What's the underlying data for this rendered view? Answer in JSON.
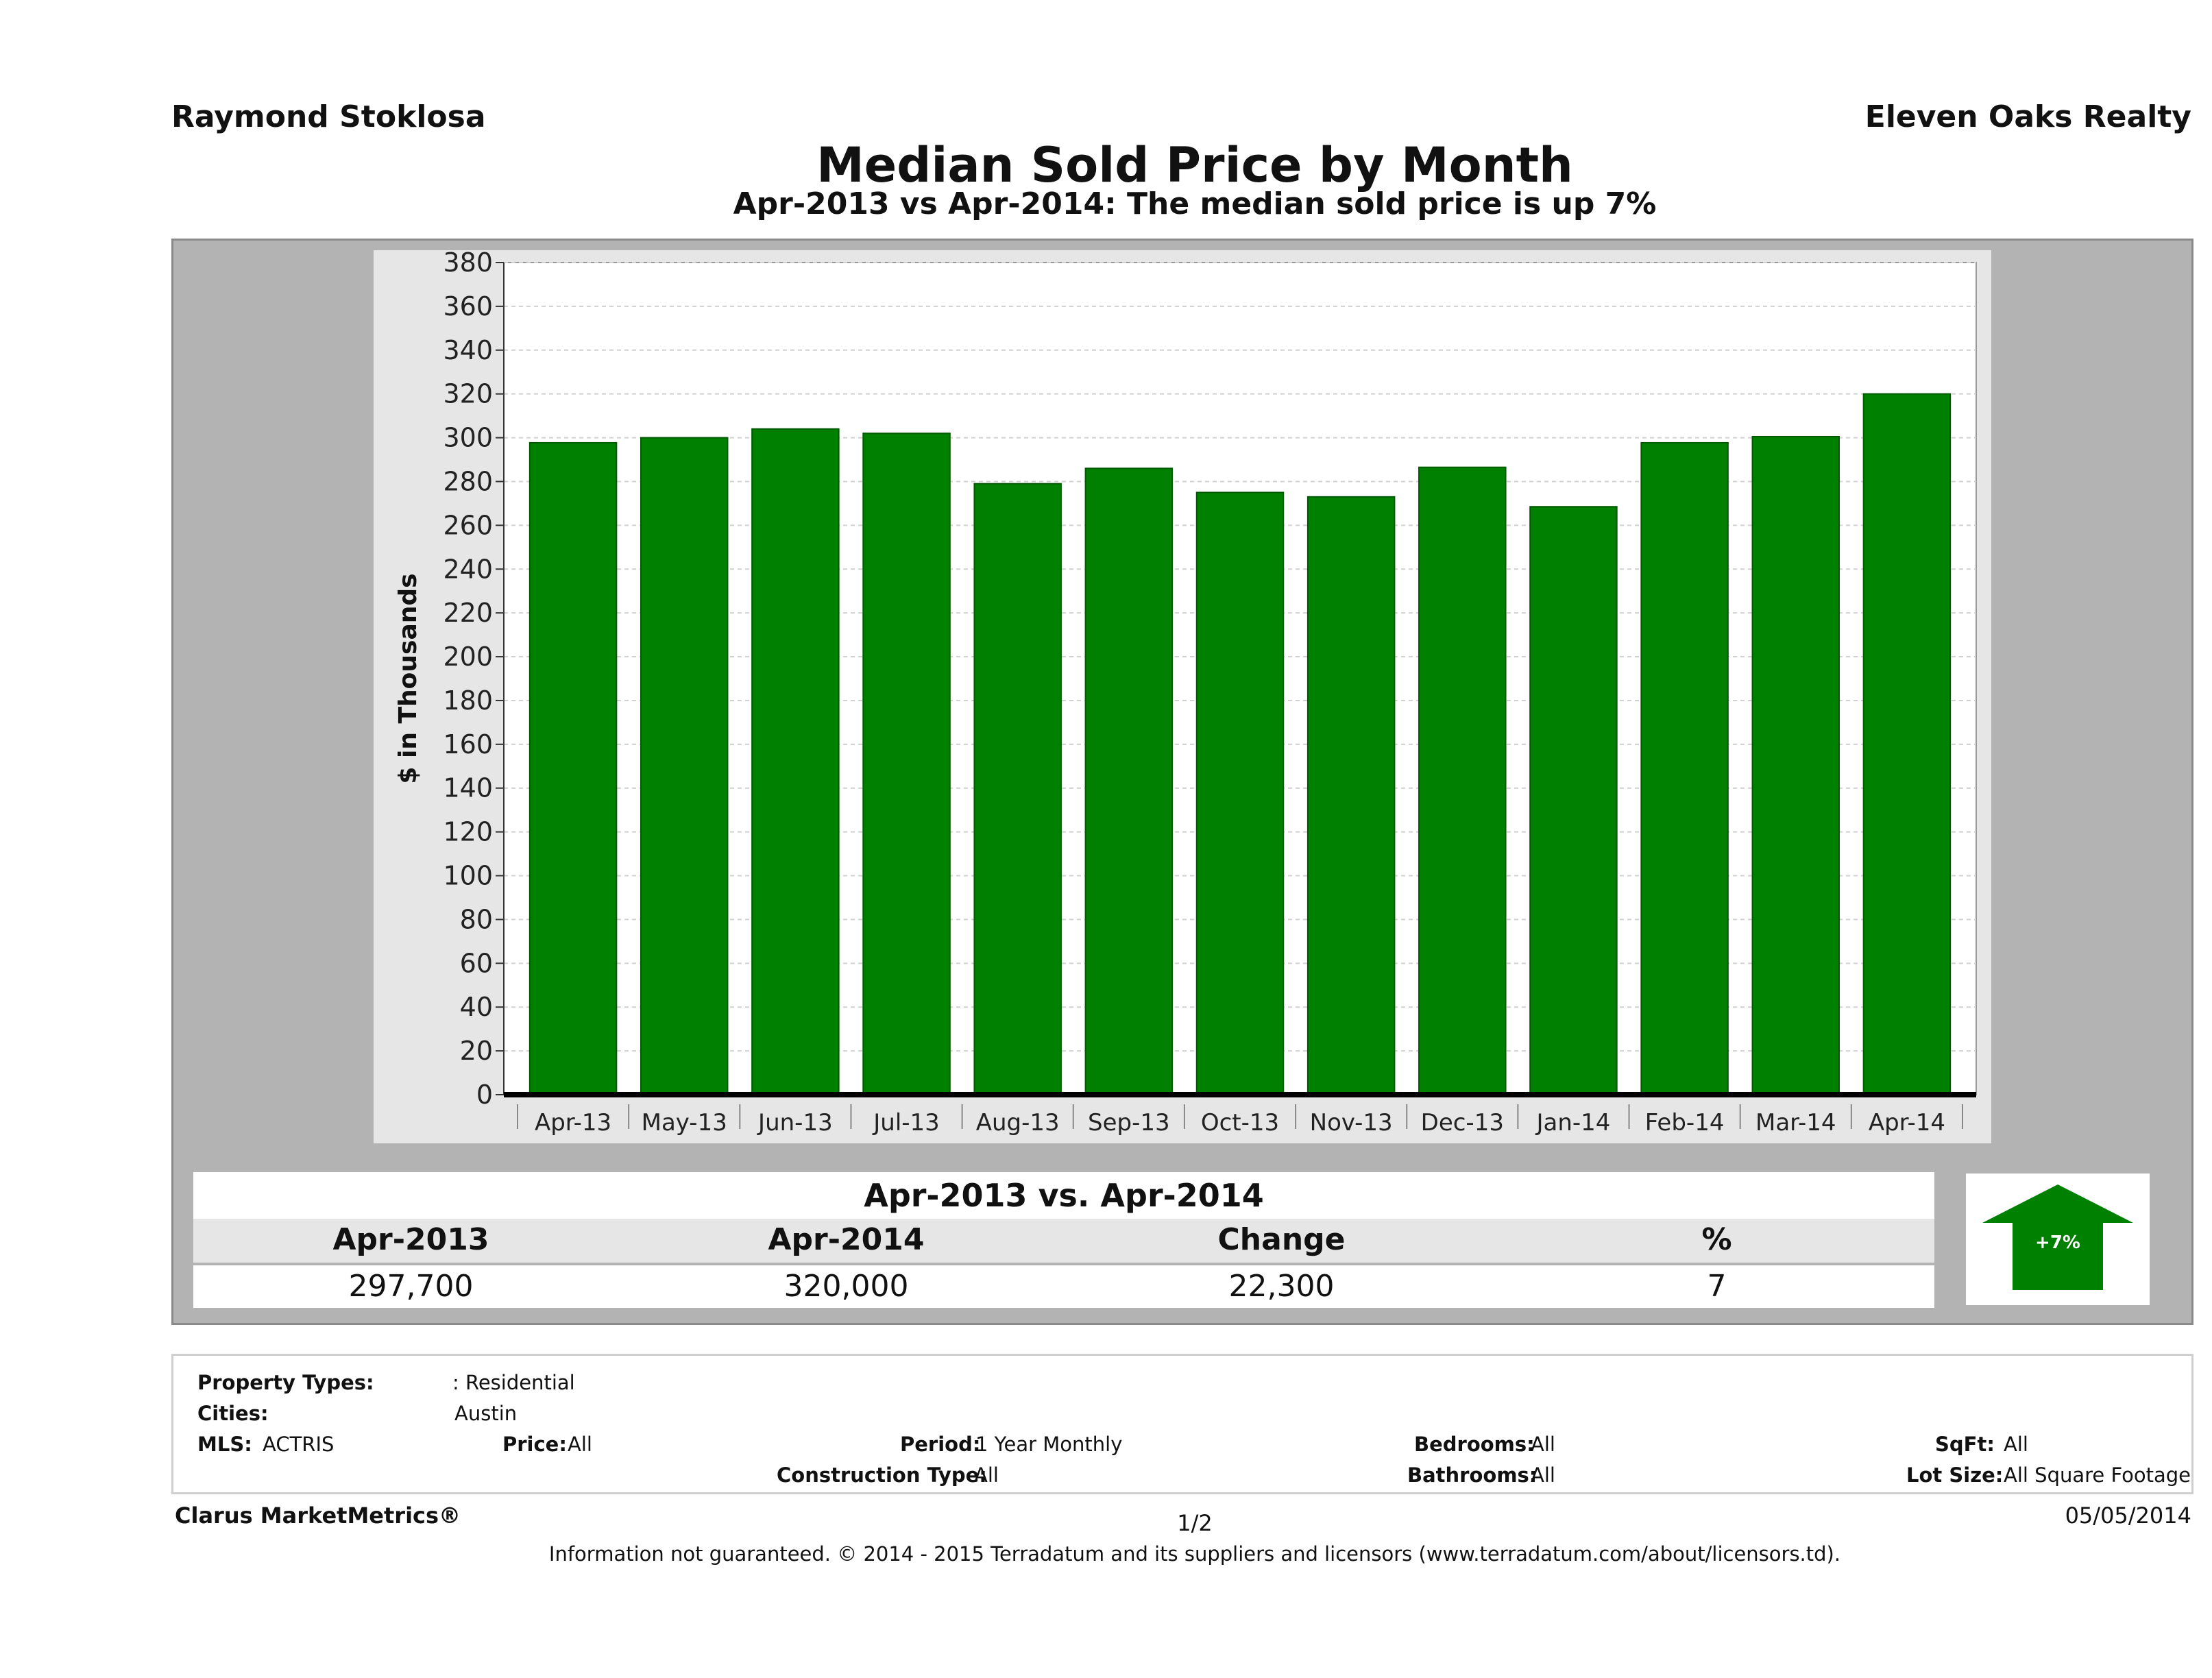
{
  "header": {
    "agent": "Raymond Stoklosa",
    "brokerage": "Eleven Oaks Realty",
    "title": "Median Sold Price by Month",
    "subtitle": "Apr-2013 vs Apr-2014: The median sold price is up 7%"
  },
  "chart_data": {
    "type": "bar",
    "ylabel": "$ in Thousands",
    "ylim": [
      0,
      380
    ],
    "yticks": [
      0,
      20,
      40,
      60,
      80,
      100,
      120,
      140,
      160,
      180,
      200,
      220,
      240,
      260,
      280,
      300,
      320,
      340,
      360,
      380
    ],
    "grid": true,
    "bar_color": "#008000",
    "categories": [
      "Apr-13",
      "May-13",
      "Jun-13",
      "Jul-13",
      "Aug-13",
      "Sep-13",
      "Oct-13",
      "Nov-13",
      "Dec-13",
      "Jan-14",
      "Feb-14",
      "Mar-14",
      "Apr-14"
    ],
    "values": [
      297.7,
      300,
      304,
      302,
      279,
      286,
      275,
      273,
      286.5,
      268.5,
      297.7,
      300.5,
      320
    ]
  },
  "comparison": {
    "title": "Apr-2013 vs. Apr-2014",
    "headers": [
      "Apr-2013",
      "Apr-2014",
      "Change",
      "%"
    ],
    "values": [
      "297,700",
      "320,000",
      "22,300",
      "7"
    ],
    "badge": "+7%",
    "badge_icon": "up-arrow-icon",
    "badge_color": "#008000"
  },
  "criteria": {
    "property_types_label": "Property Types:",
    "property_types_value": ": Residential",
    "cities_label": "Cities:",
    "cities_value": "Austin",
    "mls_label": "MLS:",
    "mls_value": "ACTRIS",
    "price_label": "Price:",
    "price_value": "All",
    "period_label": "Period:",
    "period_value": "1 Year Monthly",
    "construction_label": "Construction Type:",
    "construction_value": "All",
    "bedrooms_label": "Bedrooms:",
    "bedrooms_value": "All",
    "bathrooms_label": "Bathrooms:",
    "bathrooms_value": "All",
    "sqft_label": "SqFt:",
    "sqft_value": "All",
    "lotsize_label": "Lot Size:",
    "lotsize_value": "All Square Footage"
  },
  "footer": {
    "product": "Clarus MarketMetrics®",
    "page": "1/2",
    "date": "05/05/2014",
    "disclaimer": "Information not guaranteed. © 2014 - 2015 Terradatum and its suppliers and licensors (www.terradatum.com/about/licensors.td)."
  }
}
